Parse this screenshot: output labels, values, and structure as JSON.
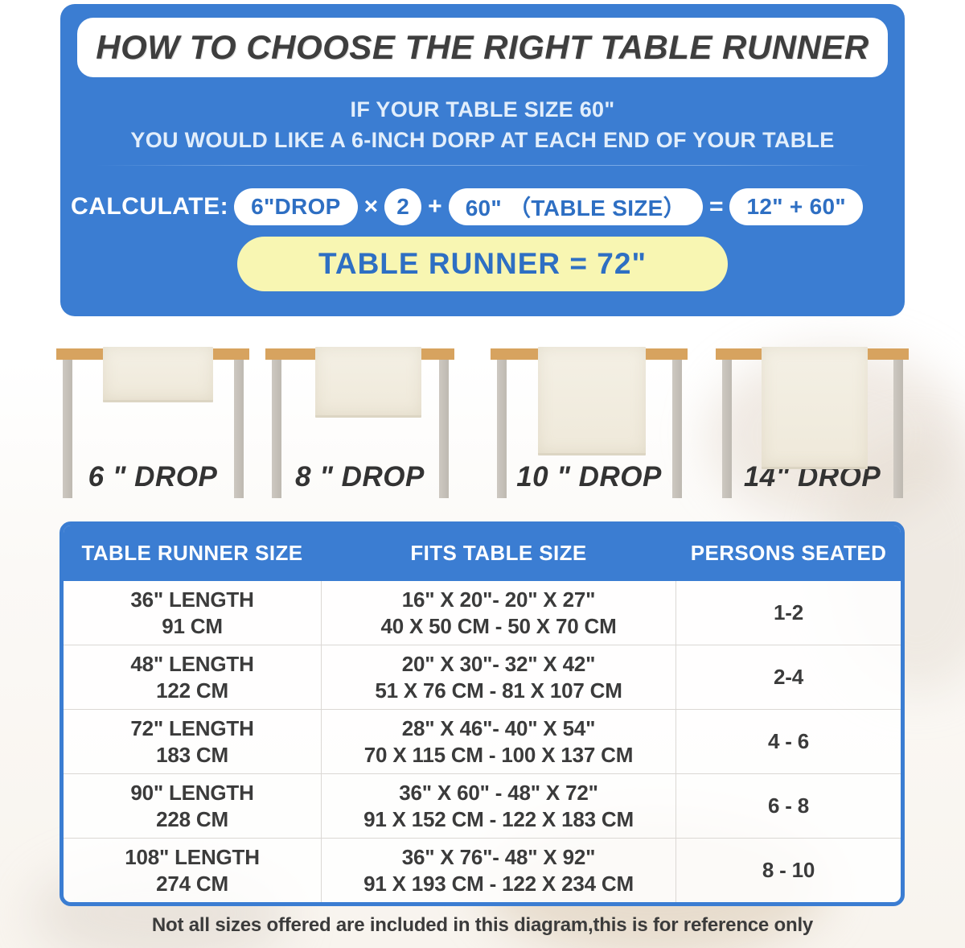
{
  "banner": {
    "title": "HOW TO CHOOSE THE RIGHT TABLE RUNNER",
    "subtitle_line1": "IF YOUR TABLE SIZE 60\"",
    "subtitle_line2": "YOU WOULD LIKE A 6-INCH DORP AT EACH END OF YOUR TABLE",
    "calculate_label": "CALCULATE:",
    "formula": {
      "drop_pill": "6\"DROP",
      "times": "×",
      "multiplier": "2",
      "plus": "+",
      "table_size_pill": "60\" （TABLE SIZE）",
      "equals": "=",
      "result_pill": "12\" + 60\""
    },
    "result_banner": "TABLE RUNNER = 72\""
  },
  "drops": [
    {
      "label": "6 \" DROP"
    },
    {
      "label": "8 \" DROP"
    },
    {
      "label": "10 \" DROP"
    },
    {
      "label": "14\" DROP"
    }
  ],
  "size_table": {
    "headers": [
      "TABLE RUNNER SIZE",
      "FITS TABLE SIZE",
      "PERSONS SEATED"
    ],
    "rows": [
      {
        "runner_in": "36\" LENGTH",
        "runner_cm": "91 CM",
        "fits_in": "16\" X 20\"- 20\" X 27\"",
        "fits_cm": "40 X 50 CM - 50 X 70 CM",
        "persons": "1-2"
      },
      {
        "runner_in": "48\" LENGTH",
        "runner_cm": "122 CM",
        "fits_in": "20\" X 30\"- 32\" X 42\"",
        "fits_cm": "51 X 76 CM - 81 X 107 CM",
        "persons": "2-4"
      },
      {
        "runner_in": "72\" LENGTH",
        "runner_cm": "183 CM",
        "fits_in": "28\" X 46\"- 40\" X 54\"",
        "fits_cm": "70 X 115 CM - 100 X 137 CM",
        "persons": "4 - 6"
      },
      {
        "runner_in": "90\" LENGTH",
        "runner_cm": "228 CM",
        "fits_in": "36\" X 60\" - 48\" X 72\"",
        "fits_cm": "91 X 152 CM - 122 X 183 CM",
        "persons": "6 - 8"
      },
      {
        "runner_in": "108\" LENGTH",
        "runner_cm": "274 CM",
        "fits_in": "36\" X 76\"- 48\" X 92\"",
        "fits_cm": "91 X 193 CM - 122 X 234 CM",
        "persons": "8 - 10"
      }
    ]
  },
  "footer_note": "Not all sizes offered are included in this diagram,this is for reference only",
  "colors": {
    "banner_blue": "#3b7dd2",
    "pill_text_blue": "#2e6fc3",
    "highlight_yellow": "#f8f6b2",
    "tabletop_tan": "#d7a35f",
    "leg_gray": "#c6c1ba",
    "runner_cream": "#f1ecdf",
    "text_dark": "#3b3b3b"
  }
}
